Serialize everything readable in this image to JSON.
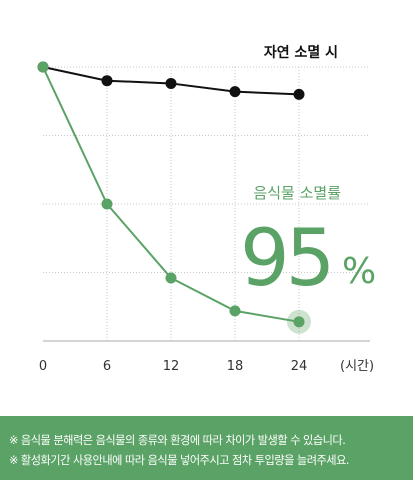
{
  "colors": {
    "natural": "#111111",
    "food": "#5aa265",
    "grid": "#c9c9c9",
    "footer_bg": "#5aa265"
  },
  "chart_data": {
    "type": "line",
    "x": [
      0,
      6,
      12,
      18,
      24
    ],
    "x_unit": "(시간)",
    "ylim": [
      0,
      100
    ],
    "grid": true,
    "series": [
      {
        "name": "자연 소멸 시",
        "values": [
          100,
          95,
          94,
          91,
          90
        ]
      },
      {
        "name": "음식물 소멸률",
        "values": [
          100,
          50,
          23,
          11,
          7
        ]
      }
    ],
    "headline_value": "95",
    "headline_unit": "%"
  },
  "footer": {
    "notes": [
      "※ 음식물 분해력은 음식물의 종류와 환경에 따라 차이가 발생할 수 있습니다.",
      "※ 활성화기간 사용안내에 따라 음식물 넣어주시고 점차 투입량을 늘려주세요."
    ]
  }
}
